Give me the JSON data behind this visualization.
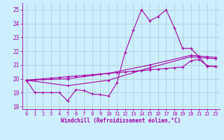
{
  "xlabel": "Windchill (Refroidissement éolien,°C)",
  "bg_color": "#cceeff",
  "line_color": "#aa00aa",
  "grid_color": "#aacccc",
  "xlim": [
    -0.5,
    23.5
  ],
  "ylim": [
    17.8,
    25.5
  ],
  "yticks": [
    18,
    19,
    20,
    21,
    22,
    23,
    24,
    25
  ],
  "xticks": [
    0,
    1,
    2,
    3,
    4,
    5,
    6,
    7,
    8,
    9,
    10,
    11,
    12,
    13,
    14,
    15,
    16,
    17,
    18,
    19,
    20,
    21,
    22,
    23
  ],
  "line1": [
    [
      0,
      19.9
    ],
    [
      1,
      19.0
    ],
    [
      2,
      19.0
    ],
    [
      3,
      19.0
    ],
    [
      4,
      19.0
    ],
    [
      5,
      18.4
    ],
    [
      6,
      19.2
    ],
    [
      7,
      19.15
    ],
    [
      8,
      18.9
    ],
    [
      9,
      18.85
    ],
    [
      10,
      18.75
    ],
    [
      11,
      19.7
    ],
    [
      12,
      21.9
    ],
    [
      13,
      23.5
    ],
    [
      14,
      25.0
    ],
    [
      15,
      24.2
    ],
    [
      16,
      24.5
    ],
    [
      17,
      25.0
    ],
    [
      18,
      23.7
    ],
    [
      19,
      22.2
    ],
    [
      20,
      22.2
    ],
    [
      21,
      21.6
    ],
    [
      22,
      20.9
    ],
    [
      23,
      20.9
    ]
  ],
  "line2": [
    [
      0,
      19.9
    ],
    [
      1,
      19.95
    ],
    [
      2,
      20.0
    ],
    [
      3,
      20.05
    ],
    [
      4,
      20.1
    ],
    [
      5,
      20.15
    ],
    [
      6,
      20.2
    ],
    [
      7,
      20.25
    ],
    [
      8,
      20.3
    ],
    [
      9,
      20.35
    ],
    [
      10,
      20.4
    ],
    [
      11,
      20.45
    ],
    [
      12,
      20.5
    ],
    [
      13,
      20.55
    ],
    [
      14,
      20.6
    ],
    [
      15,
      20.65
    ],
    [
      16,
      20.7
    ],
    [
      17,
      20.75
    ],
    [
      18,
      20.8
    ],
    [
      19,
      20.85
    ],
    [
      20,
      21.3
    ],
    [
      21,
      21.4
    ],
    [
      22,
      20.95
    ],
    [
      23,
      20.9
    ]
  ],
  "line3": [
    [
      0,
      19.9
    ],
    [
      5,
      20.0
    ],
    [
      10,
      20.4
    ],
    [
      15,
      21.0
    ],
    [
      20,
      21.7
    ],
    [
      21,
      21.65
    ],
    [
      22,
      21.6
    ],
    [
      23,
      21.55
    ]
  ],
  "line4": [
    [
      0,
      19.9
    ],
    [
      5,
      19.5
    ],
    [
      10,
      19.9
    ],
    [
      15,
      20.8
    ],
    [
      20,
      21.6
    ],
    [
      21,
      21.55
    ],
    [
      22,
      21.5
    ],
    [
      23,
      21.45
    ]
  ]
}
